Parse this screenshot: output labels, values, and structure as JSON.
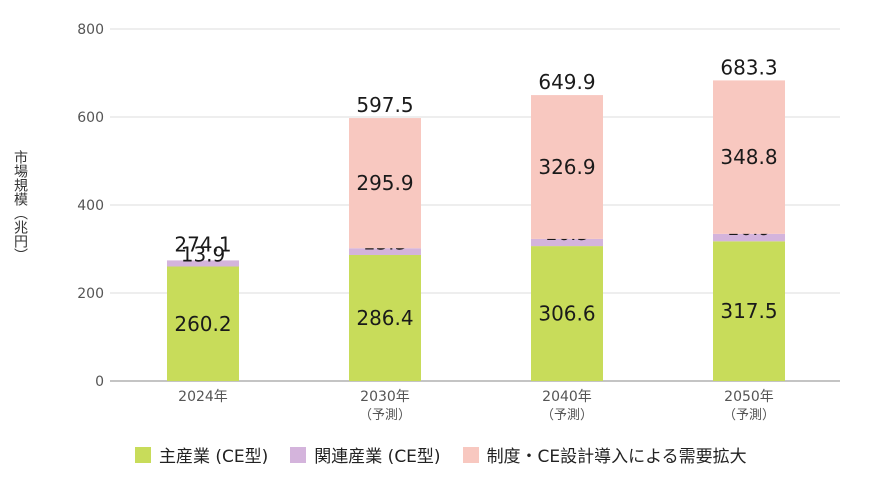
{
  "chart_data": {
    "type": "bar",
    "stacked": true,
    "ylabel": "市場規模（兆円）",
    "ylim": [
      0,
      800
    ],
    "yticks": [
      0,
      200,
      400,
      600,
      800
    ],
    "categories": [
      "2024年",
      "2030年",
      "2040年",
      "2050年"
    ],
    "category_sublabels": [
      "",
      "（予測）",
      "（予測）",
      "（予測）"
    ],
    "totals": [
      "274.1",
      "597.5",
      "649.9",
      "683.3"
    ],
    "series": [
      {
        "name": "主産業 (CE型)",
        "color": "#c8dc5a",
        "values": [
          260.2,
          286.4,
          306.6,
          317.5
        ]
      },
      {
        "name": "関連産業 (CE型)",
        "color": "#d4b4dc",
        "values": [
          13.9,
          15.3,
          16.3,
          16.9
        ]
      },
      {
        "name": "制度・CE設計導入による需要拡大",
        "color": "#f8c8c0",
        "values": [
          0,
          295.9,
          326.9,
          348.8
        ]
      }
    ],
    "grid": true,
    "legend_position": "bottom"
  }
}
